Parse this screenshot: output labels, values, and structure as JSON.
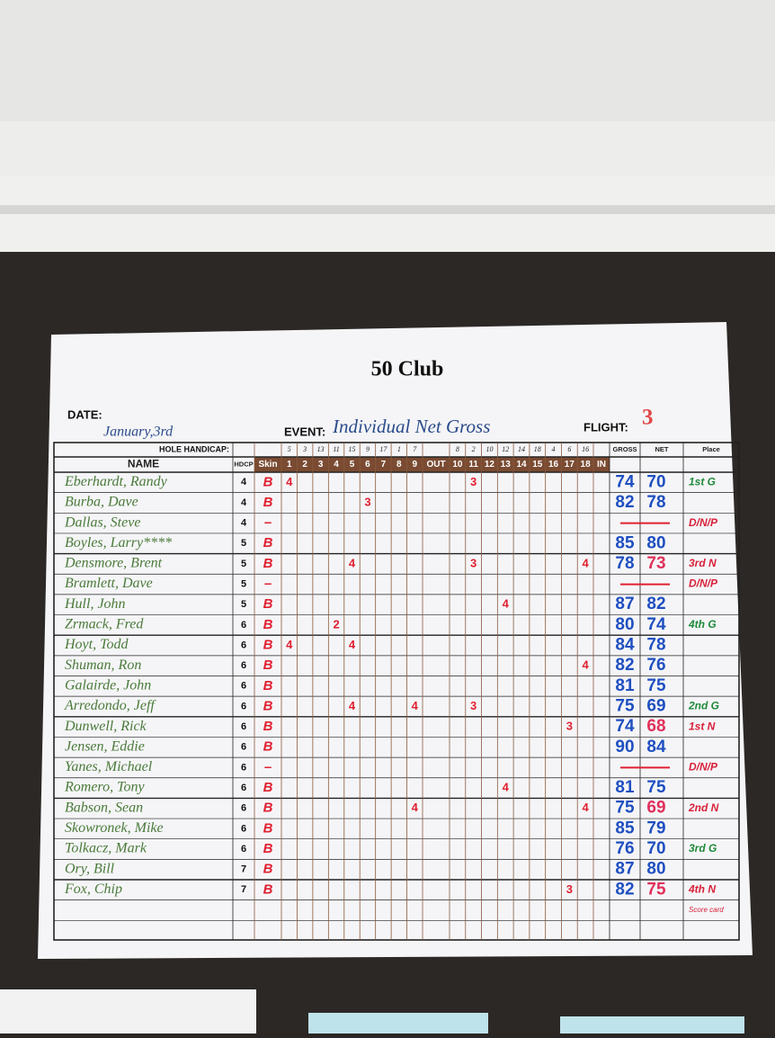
{
  "header": {
    "title": "50 Club",
    "date_label": "DATE:",
    "date": "January,3rd",
    "event_label": "EVENT:",
    "event": "Individual Net Gross",
    "flight_label": "FLIGHT:",
    "flight": "3"
  },
  "table": {
    "hole_handicap_label": "HOLE HANDICAP:",
    "handicaps_front": [
      5,
      3,
      13,
      11,
      15,
      9,
      17,
      1,
      7
    ],
    "handicaps_back": [
      8,
      2,
      10,
      12,
      14,
      18,
      4,
      6,
      16
    ],
    "columns": [
      "NAME",
      "HDCP",
      "Skin",
      "1",
      "2",
      "3",
      "4",
      "5",
      "6",
      "7",
      "8",
      "9",
      "OUT",
      "10",
      "11",
      "12",
      "13",
      "14",
      "15",
      "16",
      "17",
      "18",
      "IN",
      "GROSS",
      "NET",
      "Place"
    ],
    "rows": [
      {
        "name": "Eberhardt, Randy",
        "hdcp": 4,
        "skin": "B",
        "scores": [
          4,
          null,
          null,
          null,
          null,
          null,
          null,
          null,
          null,
          null,
          3,
          null,
          null,
          null,
          null,
          null,
          null,
          null
        ],
        "gross": 74,
        "net": 70,
        "place": "1st G",
        "place_color": "#1f8a3a"
      },
      {
        "name": "Burba, Dave",
        "hdcp": 4,
        "skin": "B",
        "scores": [
          null,
          null,
          null,
          null,
          null,
          3,
          null,
          null,
          null,
          null,
          null,
          null,
          null,
          null,
          null,
          null,
          null,
          null
        ],
        "gross": 82,
        "net": 78
      },
      {
        "name": "Dallas, Steve",
        "hdcp": 4,
        "skin": "–",
        "scores": [
          null,
          null,
          null,
          null,
          null,
          null,
          null,
          null,
          null,
          null,
          null,
          null,
          null,
          null,
          null,
          null,
          null,
          null
        ],
        "gross": null,
        "net": null,
        "place": "D/N/P",
        "place_color": "#d8203a"
      },
      {
        "name": "Boyles, Larry****",
        "hdcp": 5,
        "skin": "B",
        "scores": [
          null,
          null,
          null,
          null,
          null,
          null,
          null,
          null,
          null,
          null,
          null,
          null,
          null,
          null,
          null,
          null,
          null,
          null
        ],
        "gross": 85,
        "net": 80
      },
      {
        "name": "Densmore, Brent",
        "hdcp": 5,
        "skin": "B",
        "scores": [
          null,
          null,
          null,
          null,
          4,
          null,
          null,
          null,
          null,
          null,
          3,
          null,
          null,
          null,
          null,
          null,
          null,
          4
        ],
        "gross": 78,
        "net": 73,
        "place": "3rd N",
        "place_color": "#d8203a"
      },
      {
        "name": "Bramlett, Dave",
        "hdcp": 5,
        "skin": "–",
        "scores": [
          null,
          null,
          null,
          null,
          null,
          null,
          null,
          null,
          null,
          null,
          null,
          null,
          null,
          null,
          null,
          null,
          null,
          null
        ],
        "gross": null,
        "net": null,
        "place": "D/N/P",
        "place_color": "#d8203a"
      },
      {
        "name": "Hull, John",
        "hdcp": 5,
        "skin": "B",
        "scores": [
          null,
          null,
          null,
          null,
          null,
          null,
          null,
          null,
          null,
          null,
          null,
          null,
          4,
          null,
          null,
          null,
          null,
          null
        ],
        "gross": 87,
        "net": 82
      },
      {
        "name": "Zrmack, Fred",
        "hdcp": 6,
        "skin": "B",
        "scores": [
          null,
          null,
          null,
          2,
          null,
          null,
          null,
          null,
          null,
          null,
          null,
          null,
          null,
          null,
          null,
          null,
          null,
          null
        ],
        "gross": 80,
        "net": 74,
        "place": "4th G",
        "place_color": "#1f8a3a"
      },
      {
        "name": "Hoyt, Todd",
        "hdcp": 6,
        "skin": "B",
        "scores": [
          4,
          null,
          null,
          null,
          4,
          null,
          null,
          null,
          null,
          null,
          null,
          null,
          null,
          null,
          null,
          null,
          null,
          null
        ],
        "gross": 84,
        "net": 78
      },
      {
        "name": "Shuman, Ron",
        "hdcp": 6,
        "skin": "B",
        "scores": [
          null,
          null,
          null,
          null,
          null,
          null,
          null,
          null,
          null,
          null,
          null,
          null,
          null,
          null,
          null,
          null,
          null,
          4
        ],
        "gross": 82,
        "net": 76
      },
      {
        "name": "Galairde, John",
        "hdcp": 6,
        "skin": "B",
        "scores": [
          null,
          null,
          null,
          null,
          null,
          null,
          null,
          null,
          null,
          null,
          null,
          null,
          null,
          null,
          null,
          null,
          null,
          null
        ],
        "gross": 81,
        "net": 75
      },
      {
        "name": "Arredondo, Jeff",
        "hdcp": 6,
        "skin": "B",
        "scores": [
          null,
          null,
          null,
          null,
          4,
          null,
          null,
          null,
          4,
          null,
          3,
          null,
          null,
          null,
          null,
          null,
          null,
          null
        ],
        "gross": 75,
        "net": 69,
        "place": "2nd G",
        "place_color": "#1f8a3a"
      },
      {
        "name": "Dunwell, Rick",
        "hdcp": 6,
        "skin": "B",
        "scores": [
          null,
          null,
          null,
          null,
          null,
          null,
          null,
          null,
          null,
          null,
          null,
          null,
          null,
          null,
          null,
          null,
          3,
          null
        ],
        "gross": 74,
        "net": 68,
        "place": "1st N",
        "place_color": "#d8203a"
      },
      {
        "name": "Jensen, Eddie",
        "hdcp": 6,
        "skin": "B",
        "scores": [
          null,
          null,
          null,
          null,
          null,
          null,
          null,
          null,
          null,
          null,
          null,
          null,
          null,
          null,
          null,
          null,
          null,
          null
        ],
        "gross": 90,
        "net": 84
      },
      {
        "name": "Yanes, Michael",
        "hdcp": 6,
        "skin": "–",
        "scores": [
          null,
          null,
          null,
          null,
          null,
          null,
          null,
          null,
          null,
          null,
          null,
          null,
          null,
          null,
          null,
          null,
          null,
          null
        ],
        "gross": null,
        "net": null,
        "place": "D/N/P",
        "place_color": "#d8203a"
      },
      {
        "name": "Romero, Tony",
        "hdcp": 6,
        "skin": "B",
        "scores": [
          null,
          null,
          null,
          null,
          null,
          null,
          null,
          null,
          null,
          null,
          null,
          null,
          4,
          null,
          null,
          null,
          null,
          null
        ],
        "gross": 81,
        "net": 75
      },
      {
        "name": "Babson, Sean",
        "hdcp": 6,
        "skin": "B",
        "scores": [
          null,
          null,
          null,
          null,
          null,
          null,
          null,
          null,
          4,
          null,
          null,
          null,
          null,
          null,
          null,
          null,
          null,
          4
        ],
        "gross": 75,
        "net": 69,
        "place": "2nd N",
        "place_color": "#d8203a"
      },
      {
        "name": "Skowronek, Mike",
        "hdcp": 6,
        "skin": "B",
        "scores": [
          null,
          null,
          null,
          null,
          null,
          null,
          null,
          null,
          null,
          null,
          null,
          null,
          null,
          null,
          null,
          null,
          null,
          null
        ],
        "gross": 85,
        "net": 79
      },
      {
        "name": "Tolkacz, Mark",
        "hdcp": 6,
        "skin": "B",
        "scores": [
          null,
          null,
          null,
          null,
          null,
          null,
          null,
          null,
          null,
          null,
          null,
          null,
          null,
          null,
          null,
          null,
          null,
          null
        ],
        "gross": 76,
        "net": 70,
        "place": "3rd G",
        "place_color": "#1f8a3a"
      },
      {
        "name": "Ory, Bill",
        "hdcp": 7,
        "skin": "B",
        "scores": [
          null,
          null,
          null,
          null,
          null,
          null,
          null,
          null,
          null,
          null,
          null,
          null,
          null,
          null,
          null,
          null,
          null,
          null
        ],
        "gross": 87,
        "net": 80
      },
      {
        "name": "Fox, Chip",
        "hdcp": 7,
        "skin": "B",
        "scores": [
          null,
          null,
          null,
          null,
          null,
          null,
          null,
          null,
          null,
          null,
          null,
          null,
          null,
          null,
          null,
          null,
          3,
          null
        ],
        "gross": 82,
        "net": 75,
        "place": "4th N",
        "place_color": "#d8203a",
        "note": "Score card"
      }
    ]
  }
}
